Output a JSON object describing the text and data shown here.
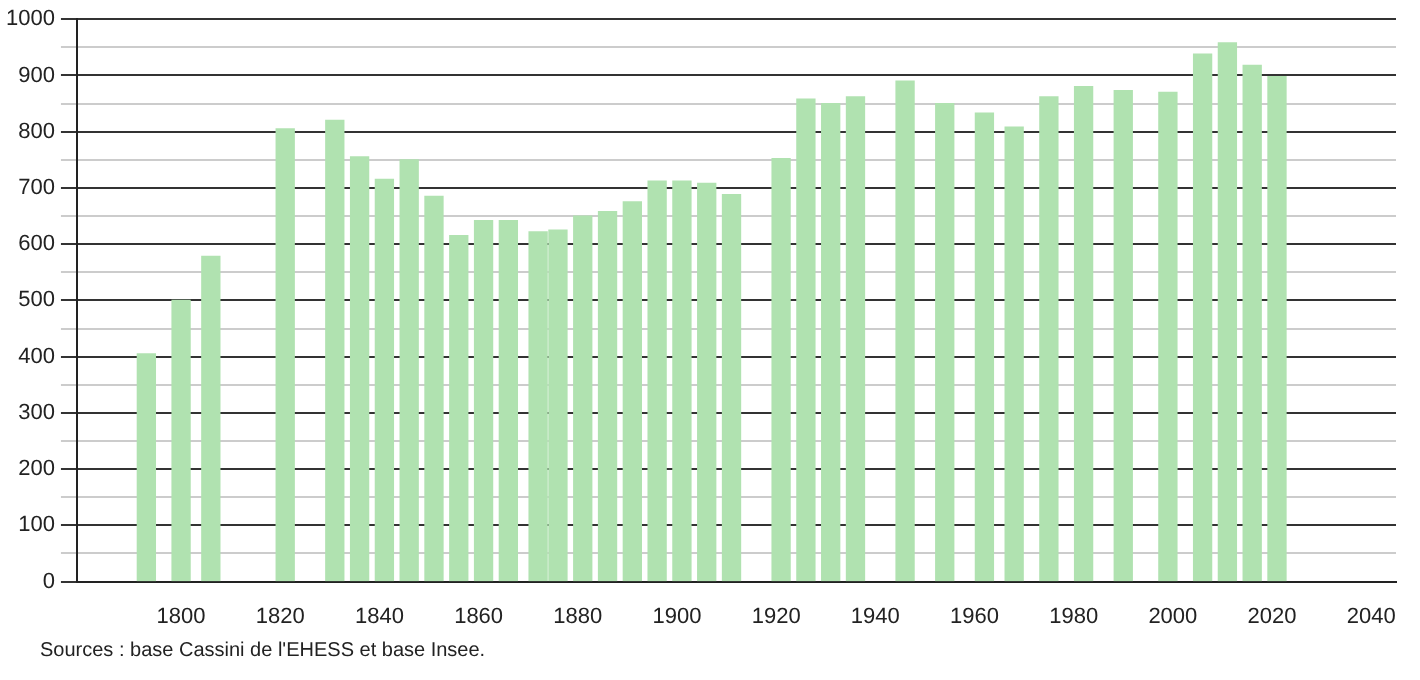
{
  "chart_data": {
    "type": "bar",
    "x": [
      1793,
      1800,
      1806,
      1821,
      1831,
      1836,
      1841,
      1846,
      1851,
      1856,
      1861,
      1866,
      1872,
      1876,
      1881,
      1886,
      1891,
      1896,
      1901,
      1906,
      1911,
      1921,
      1926,
      1931,
      1936,
      1946,
      1954,
      1962,
      1968,
      1975,
      1982,
      1990,
      1999,
      2006,
      2011,
      2016,
      2021
    ],
    "values": [
      405,
      500,
      578,
      805,
      820,
      755,
      715,
      750,
      685,
      615,
      642,
      642,
      622,
      625,
      650,
      658,
      675,
      712,
      712,
      708,
      688,
      752,
      858,
      850,
      862,
      890,
      850,
      833,
      808,
      862,
      880,
      873,
      870,
      938,
      958,
      918,
      898
    ],
    "color": "#b0e2b0",
    "xlim": [
      1779,
      2045
    ],
    "xticks": [
      1800,
      1820,
      1840,
      1860,
      1880,
      1900,
      1920,
      1940,
      1960,
      1980,
      2000,
      2020,
      2040
    ],
    "ylim": [
      0,
      1000
    ],
    "yticks": [
      0,
      {
        "value": 50,
        "label": null
      },
      100,
      {
        "value": 150,
        "label": null
      },
      200,
      {
        "value": 250,
        "label": null
      },
      300,
      {
        "value": 350,
        "label": null
      },
      400,
      {
        "value": 450,
        "label": null
      },
      500,
      {
        "value": 550,
        "label": null
      },
      600,
      {
        "value": 650,
        "label": null
      },
      700,
      {
        "value": 750,
        "label": null
      },
      800,
      {
        "value": 850,
        "label": null
      },
      900,
      {
        "value": 950,
        "label": null
      },
      1000
    ],
    "grid": "y",
    "annotations": [
      "Sources : base Cassini de l'EHESS et base Insee."
    ]
  }
}
